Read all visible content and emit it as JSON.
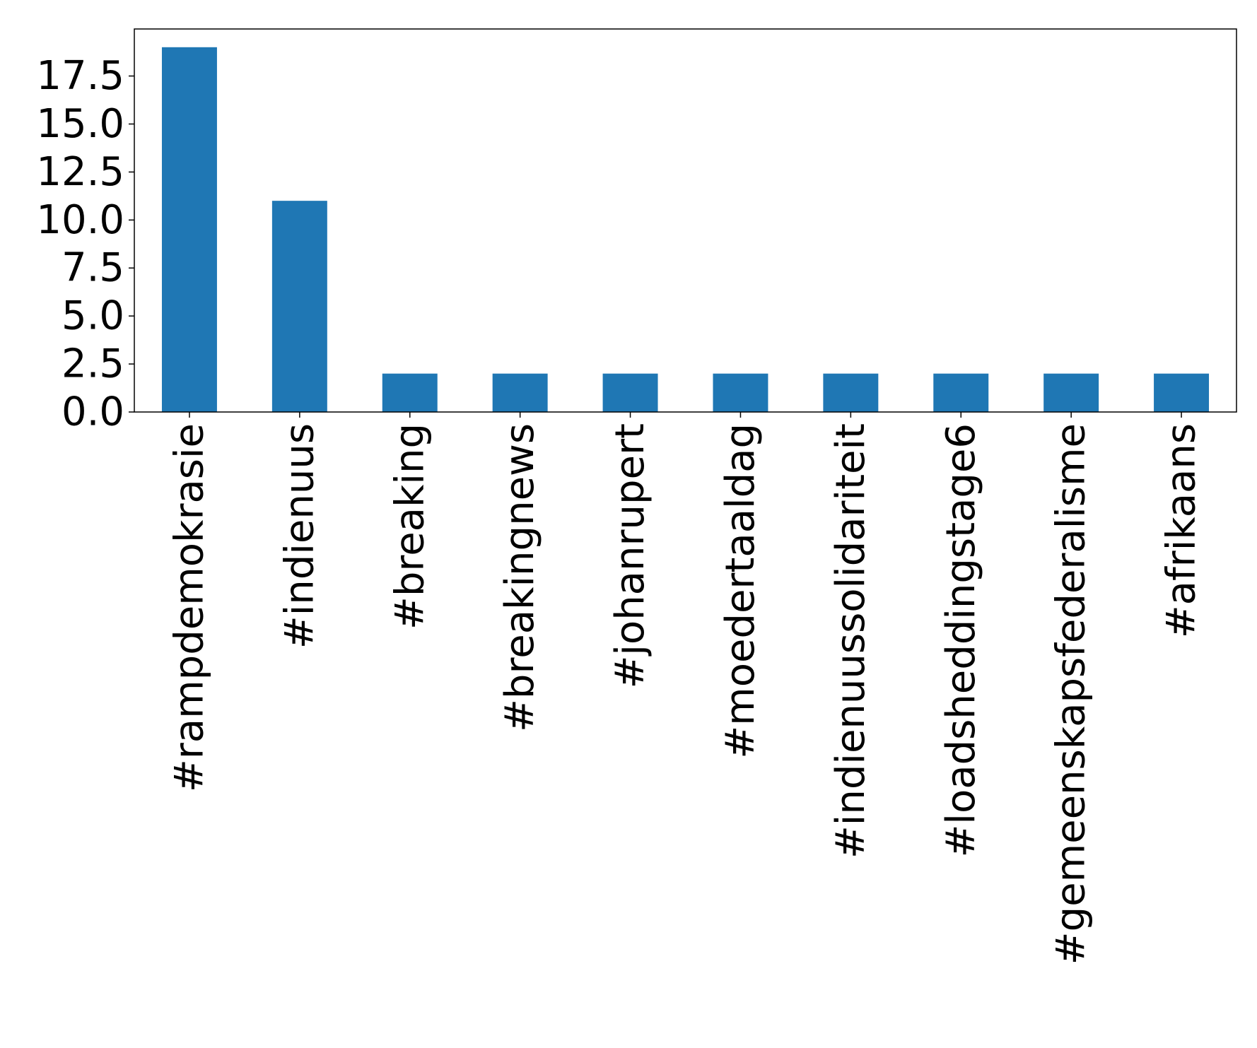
{
  "chart_data": {
    "type": "bar",
    "categories": [
      "#rampdemokrasie",
      "#indienuus",
      "#breaking",
      "#breakingnews",
      "#johanrupert",
      "#moedertaaldag",
      "#indienuussolidariteit",
      "#loadsheddingstage6",
      "#gemeenskapsfederalisme",
      "#afrikaans"
    ],
    "values": [
      19,
      11,
      2,
      2,
      2,
      2,
      2,
      2,
      2,
      2
    ],
    "ylim": [
      0,
      19.95
    ],
    "yticks": [
      "0.0",
      "2.5",
      "5.0",
      "7.5",
      "10.0",
      "12.5",
      "15.0",
      "17.5"
    ],
    "title": "",
    "xlabel": "",
    "ylabel": "",
    "grid": false,
    "legend": "none",
    "colors": {
      "bar": "#1f77b4",
      "axis": "#000000",
      "background": "#ffffff"
    }
  }
}
